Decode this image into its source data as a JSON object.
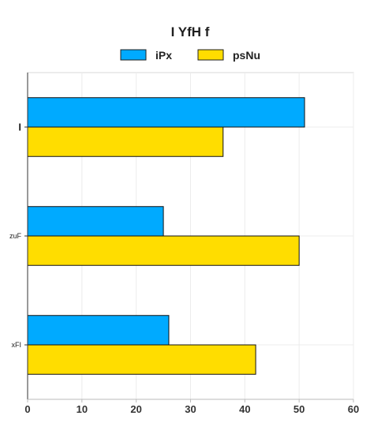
{
  "chart_data": {
    "type": "bar",
    "orientation": "horizontal",
    "title": "I YfH f",
    "xlabel": "",
    "ylabel": "",
    "categories": [
      "I",
      "zuF",
      "xFI"
    ],
    "series": [
      {
        "name": "iPx",
        "values": [
          51,
          25,
          26
        ],
        "color": "#00AAFF"
      },
      {
        "name": "psNu",
        "values": [
          36,
          50,
          42
        ],
        "color": "#FFDD00"
      }
    ],
    "xlim": [
      0,
      60
    ],
    "xticks": [
      0,
      10,
      20,
      30,
      40,
      50,
      60
    ],
    "grid": true,
    "legend_position": "top-center"
  }
}
